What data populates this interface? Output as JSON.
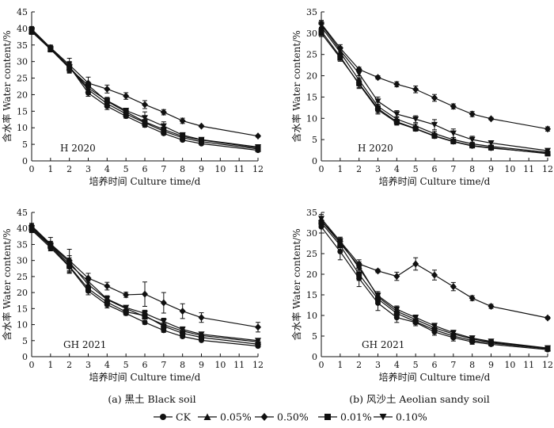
{
  "chart_data": [
    {
      "id": "black-2020",
      "type": "line",
      "tag": "H 2020",
      "xlabel": "培养时间 Culture time/d",
      "ylabel": "含水率 Water content/%",
      "x": [
        0,
        1,
        2,
        3,
        4,
        5,
        6,
        7,
        8,
        9,
        12
      ],
      "xticks": [
        0,
        1,
        2,
        3,
        4,
        5,
        6,
        7,
        8,
        9,
        10,
        11,
        12
      ],
      "xlim": [
        0,
        12
      ],
      "ylim": [
        0,
        45
      ],
      "yticks": [
        0,
        5,
        10,
        15,
        20,
        25,
        30,
        35,
        40,
        45
      ],
      "series": [
        {
          "name": "CK",
          "marker": "circle",
          "values": [
            39.5,
            34.0,
            28.5,
            20.5,
            16.5,
            13.5,
            10.8,
            8.3,
            6.3,
            5.2,
            3.2
          ],
          "errors": [
            0.8,
            0.8,
            1.5,
            1.0,
            1.0,
            0.6,
            0.6,
            0.5,
            0.4,
            0.4,
            0.3
          ]
        },
        {
          "name": "0.05%",
          "marker": "triangle-up",
          "values": [
            39.3,
            33.8,
            28.2,
            21.5,
            17.3,
            14.2,
            11.5,
            9.0,
            7.0,
            5.8,
            3.6
          ],
          "errors": [
            0.8,
            0.8,
            1.5,
            1.0,
            1.0,
            0.6,
            0.6,
            0.5,
            0.4,
            0.4,
            0.3
          ]
        },
        {
          "name": "0.50%",
          "marker": "diamond",
          "values": [
            39.8,
            34.2,
            29.0,
            23.5,
            21.7,
            19.6,
            17.0,
            14.7,
            12.1,
            10.5,
            7.5
          ],
          "errors": [
            0.8,
            0.8,
            2.0,
            1.8,
            1.2,
            1.0,
            1.2,
            0.8,
            0.8,
            0.3,
            0.3
          ]
        },
        {
          "name": "0.01%",
          "marker": "square",
          "values": [
            39.0,
            33.7,
            28.0,
            22.8,
            18.0,
            14.8,
            11.8,
            9.5,
            7.4,
            6.3,
            3.9
          ],
          "errors": [
            0.8,
            0.8,
            1.5,
            1.0,
            1.0,
            0.6,
            0.6,
            0.5,
            0.4,
            0.4,
            0.3
          ]
        },
        {
          "name": "0.10%",
          "marker": "triangle-down",
          "values": [
            39.6,
            33.9,
            28.4,
            22.0,
            18.2,
            15.2,
            13.0,
            10.5,
            7.8,
            6.4,
            4.2
          ],
          "errors": [
            0.8,
            0.8,
            1.5,
            1.0,
            1.0,
            0.6,
            1.8,
            1.3,
            0.6,
            0.4,
            0.3
          ]
        }
      ]
    },
    {
      "id": "aeolian-2020",
      "type": "line",
      "tag": "H 2020",
      "xlabel": "培养时间 Culture time/d",
      "ylabel": "含水率 Water content/%",
      "x": [
        0,
        1,
        2,
        3,
        4,
        5,
        6,
        7,
        8,
        9,
        12
      ],
      "xticks": [
        0,
        1,
        2,
        3,
        4,
        5,
        6,
        7,
        8,
        9,
        10,
        11,
        12
      ],
      "xlim": [
        0,
        12
      ],
      "ylim": [
        0,
        35
      ],
      "yticks": [
        0,
        5,
        10,
        15,
        20,
        25,
        30,
        35
      ],
      "series": [
        {
          "name": "CK",
          "marker": "circle",
          "values": [
            30.5,
            24.5,
            18.0,
            12.0,
            9.0,
            7.5,
            5.8,
            4.5,
            3.5,
            3.0,
            1.8
          ],
          "errors": [
            0.8,
            0.8,
            1.0,
            1.0,
            0.6,
            0.5,
            0.5,
            0.5,
            0.4,
            0.3,
            0.3
          ]
        },
        {
          "name": "0.05%",
          "marker": "triangle-up",
          "values": [
            31.5,
            25.5,
            19.0,
            12.8,
            9.8,
            8.2,
            6.4,
            5.0,
            4.0,
            3.4,
            2.0
          ],
          "errors": [
            0.8,
            0.8,
            1.0,
            1.0,
            0.6,
            0.5,
            0.5,
            0.5,
            0.4,
            0.3,
            0.3
          ]
        },
        {
          "name": "0.50%",
          "marker": "diamond",
          "values": [
            32.2,
            26.5,
            21.5,
            19.6,
            18.0,
            16.8,
            14.8,
            12.8,
            11.0,
            9.9,
            7.5
          ],
          "errors": [
            0.8,
            0.8,
            0.5,
            0.4,
            0.6,
            0.8,
            0.8,
            0.6,
            0.6,
            0.3,
            0.5
          ]
        },
        {
          "name": "0.01%",
          "marker": "square",
          "values": [
            30.0,
            24.2,
            18.2,
            12.3,
            9.2,
            7.6,
            5.9,
            4.6,
            3.6,
            3.1,
            1.7
          ],
          "errors": [
            0.8,
            0.8,
            1.0,
            1.0,
            0.6,
            0.5,
            0.5,
            0.5,
            0.4,
            0.3,
            0.3
          ]
        },
        {
          "name": "0.10%",
          "marker": "triangle-down",
          "values": [
            32.0,
            26.0,
            20.5,
            14.0,
            11.0,
            9.8,
            8.5,
            6.5,
            5.0,
            4.2,
            2.4
          ],
          "errors": [
            0.8,
            0.8,
            1.0,
            1.0,
            0.8,
            0.8,
            1.2,
            1.0,
            0.8,
            0.5,
            0.3
          ]
        }
      ]
    },
    {
      "id": "black-2021",
      "type": "line",
      "tag": "GH 2021",
      "xlabel": "培养时间 Culture time/d",
      "ylabel": "含水率 Water content/%",
      "x": [
        0,
        1,
        2,
        3,
        4,
        5,
        6,
        7,
        8,
        9,
        12
      ],
      "xticks": [
        0,
        1,
        2,
        3,
        4,
        5,
        6,
        7,
        8,
        9,
        10,
        11,
        12
      ],
      "xlim": [
        0,
        12
      ],
      "ylim": [
        0,
        45
      ],
      "yticks": [
        0,
        5,
        10,
        15,
        20,
        25,
        30,
        35,
        40,
        45
      ],
      "series": [
        {
          "name": "CK",
          "marker": "circle",
          "values": [
            39.5,
            34.0,
            28.0,
            20.5,
            16.2,
            13.5,
            10.7,
            8.2,
            6.3,
            5.1,
            3.3
          ],
          "errors": [
            0.8,
            1.0,
            2.0,
            1.2,
            1.0,
            0.6,
            0.6,
            0.6,
            0.5,
            0.4,
            0.4
          ]
        },
        {
          "name": "0.05%",
          "marker": "triangle-up",
          "values": [
            40.5,
            35.0,
            29.5,
            22.5,
            17.8,
            15.0,
            12.5,
            10.0,
            8.0,
            6.6,
            4.6
          ],
          "errors": [
            0.8,
            1.0,
            2.0,
            1.2,
            1.0,
            0.6,
            0.6,
            0.6,
            0.5,
            0.4,
            0.4
          ]
        },
        {
          "name": "0.50%",
          "marker": "diamond",
          "values": [
            40.8,
            35.2,
            30.0,
            24.5,
            22.0,
            19.3,
            19.5,
            16.8,
            14.2,
            12.2,
            9.2
          ],
          "errors": [
            0.8,
            2.0,
            3.5,
            1.5,
            1.2,
            0.8,
            3.8,
            3.2,
            2.3,
            1.5,
            1.5
          ]
        },
        {
          "name": "0.01%",
          "marker": "square",
          "values": [
            39.8,
            34.5,
            28.2,
            21.2,
            17.0,
            14.0,
            12.8,
            9.5,
            7.3,
            6.0,
            3.9
          ],
          "errors": [
            0.8,
            1.0,
            2.0,
            1.2,
            1.0,
            0.6,
            0.6,
            0.6,
            0.5,
            0.4,
            0.4
          ]
        },
        {
          "name": "0.10%",
          "marker": "triangle-down",
          "values": [
            40.2,
            34.8,
            28.8,
            23.5,
            18.0,
            15.3,
            13.5,
            11.0,
            8.5,
            7.0,
            5.0
          ],
          "errors": [
            0.8,
            1.0,
            2.0,
            1.2,
            1.0,
            0.6,
            1.0,
            1.0,
            0.8,
            0.6,
            0.5
          ]
        }
      ]
    },
    {
      "id": "aeolian-2021",
      "type": "line",
      "tag": "GH 2021",
      "xlabel": "培养时间 Culture time/d",
      "ylabel": "含水率 Water content/%",
      "x": [
        0,
        1,
        2,
        3,
        4,
        5,
        6,
        7,
        8,
        9,
        12
      ],
      "xticks": [
        0,
        1,
        2,
        3,
        4,
        5,
        6,
        7,
        8,
        9,
        10,
        11,
        12
      ],
      "xlim": [
        0,
        12
      ],
      "ylim": [
        0,
        35
      ],
      "yticks": [
        0,
        5,
        10,
        15,
        20,
        25,
        30,
        35
      ],
      "series": [
        {
          "name": "CK",
          "marker": "circle",
          "values": [
            31.5,
            25.5,
            19.0,
            13.0,
            9.5,
            8.3,
            6.0,
            4.6,
            3.6,
            3.0,
            1.7
          ],
          "errors": [
            1.5,
            2.0,
            2.0,
            1.8,
            1.2,
            0.8,
            0.8,
            0.8,
            0.6,
            0.4,
            0.3
          ]
        },
        {
          "name": "0.05%",
          "marker": "triangle-up",
          "values": [
            33.0,
            27.5,
            22.0,
            14.5,
            11.0,
            9.0,
            7.0,
            5.5,
            4.3,
            3.5,
            2.0
          ],
          "errors": [
            1.0,
            1.0,
            1.0,
            1.0,
            0.8,
            0.6,
            0.6,
            0.6,
            0.5,
            0.4,
            0.3
          ]
        },
        {
          "name": "0.50%",
          "marker": "diamond",
          "values": [
            33.0,
            28.0,
            22.5,
            20.8,
            19.5,
            22.5,
            19.8,
            17.0,
            14.2,
            12.2,
            9.4
          ],
          "errors": [
            1.0,
            0.8,
            1.0,
            0.4,
            1.0,
            1.5,
            1.2,
            1.0,
            0.6,
            0.5,
            0.3
          ]
        },
        {
          "name": "0.01%",
          "marker": "square",
          "values": [
            32.5,
            27.0,
            20.0,
            14.0,
            10.5,
            8.5,
            6.5,
            5.0,
            3.9,
            3.3,
            1.9
          ],
          "errors": [
            1.2,
            1.2,
            1.5,
            1.2,
            1.0,
            0.6,
            0.6,
            0.6,
            0.5,
            0.4,
            0.3
          ]
        },
        {
          "name": "0.10%",
          "marker": "triangle-down",
          "values": [
            33.5,
            28.0,
            21.5,
            14.8,
            11.5,
            9.5,
            7.5,
            5.8,
            4.5,
            3.7,
            2.1
          ],
          "errors": [
            1.0,
            1.0,
            1.0,
            1.0,
            0.8,
            0.6,
            0.6,
            0.6,
            0.5,
            0.4,
            0.3
          ]
        }
      ]
    }
  ],
  "captions": {
    "left": "(a) 黑土 Black soil",
    "right": "(b) 风沙土 Aeolian sandy soil"
  },
  "legend": [
    {
      "label": "CK",
      "marker": "circle"
    },
    {
      "label": "0.05%",
      "marker": "triangle-up"
    },
    {
      "label": "0.50%",
      "marker": "diamond"
    },
    {
      "label": "0.01%",
      "marker": "square"
    },
    {
      "label": "0.10%",
      "marker": "triangle-down"
    }
  ],
  "colors": {
    "ink": "#111111",
    "background": "#ffffff"
  }
}
